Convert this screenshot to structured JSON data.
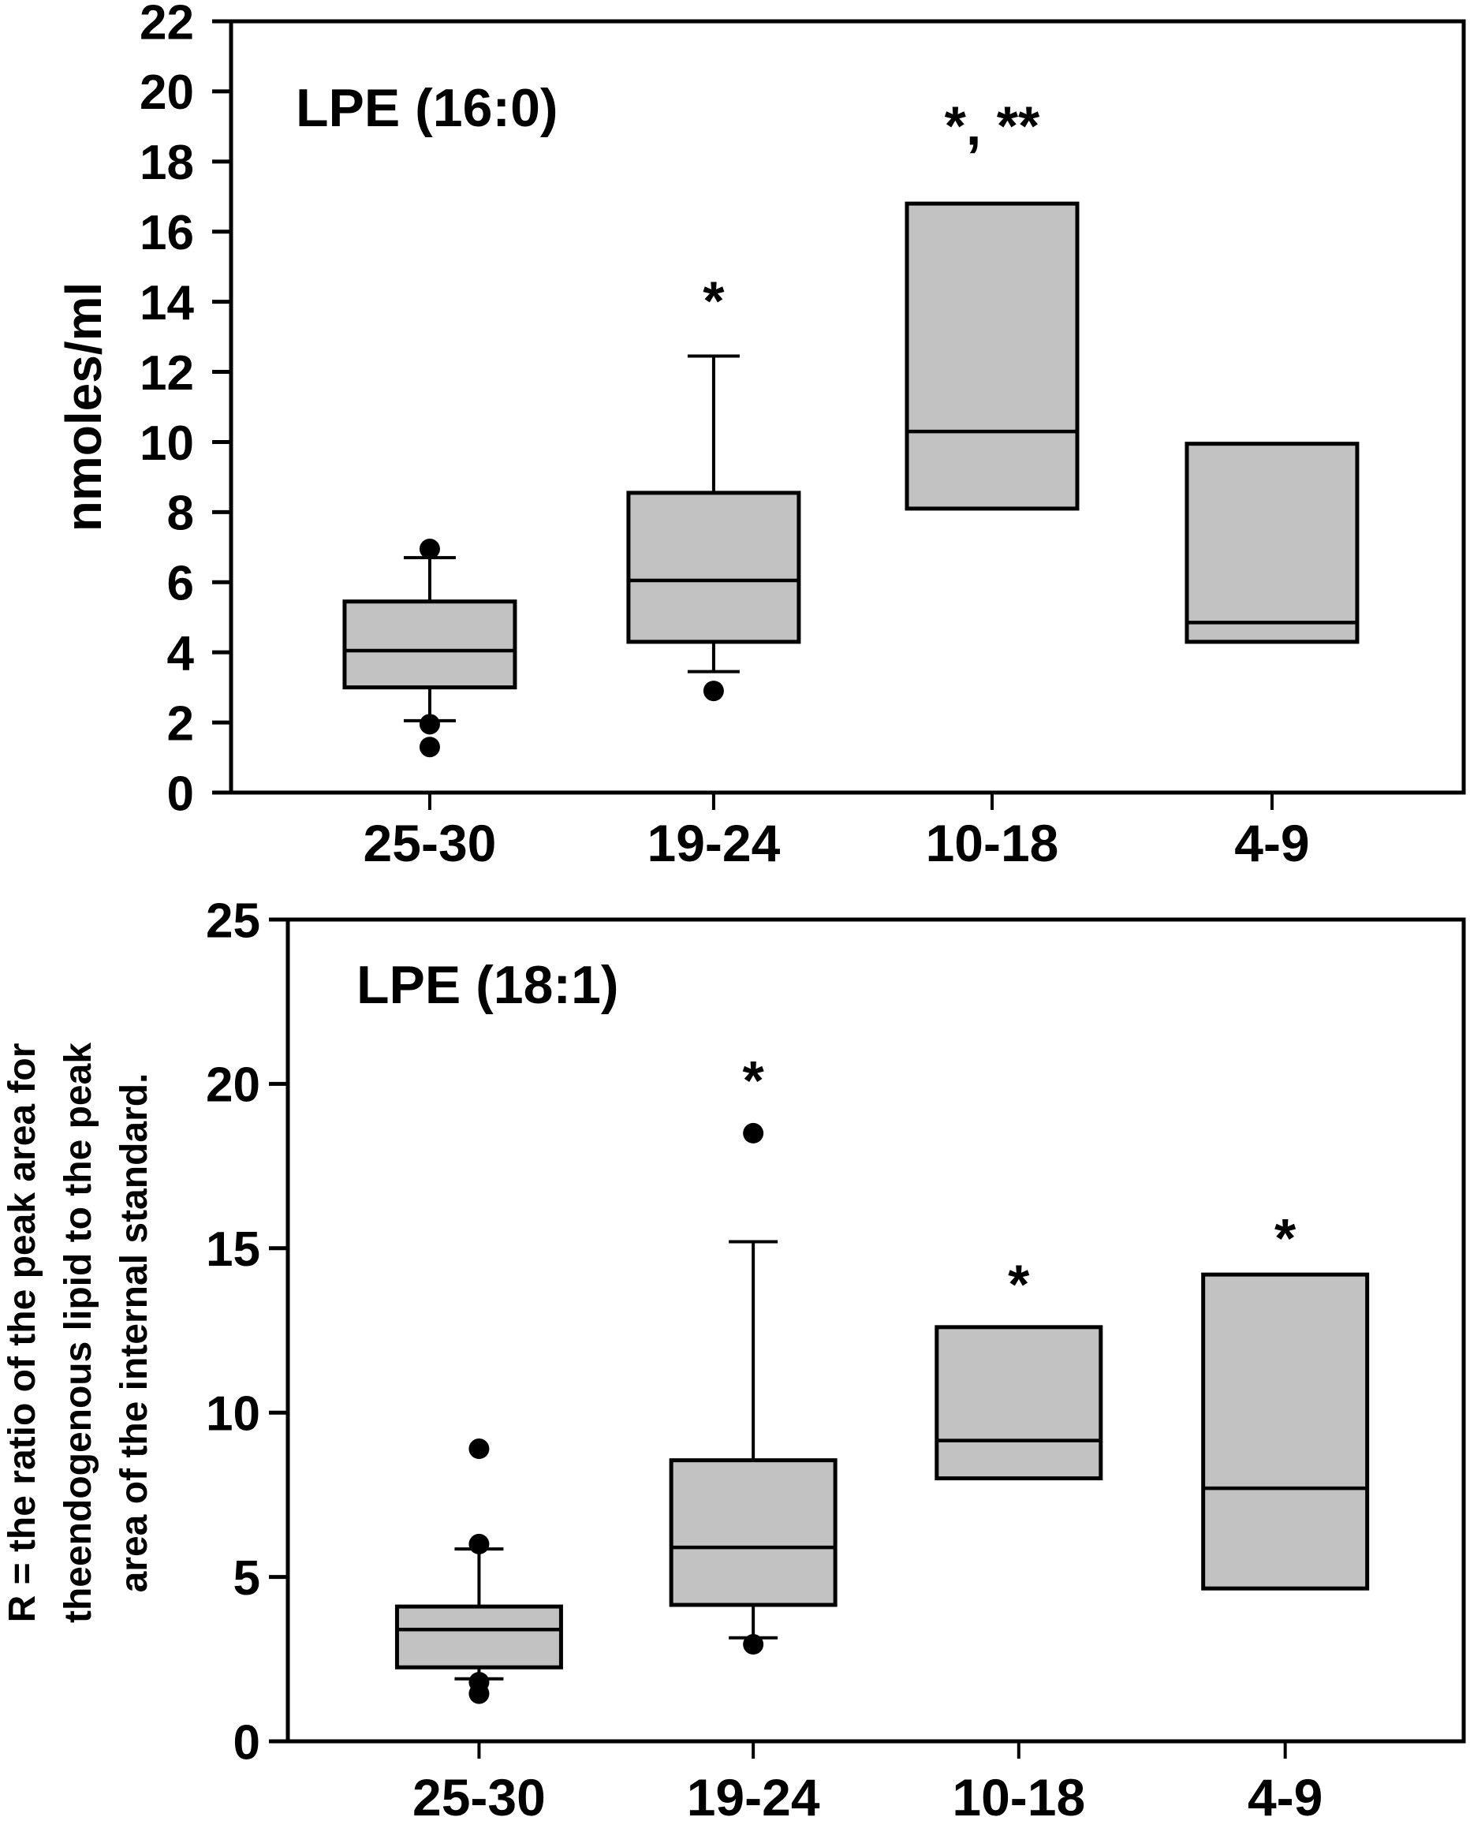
{
  "figure": {
    "background": "#FFFFFF",
    "description": "Two stacked box plots of LPE lipid levels by gestational-age group"
  },
  "style": {
    "box_fill": "#C2C2C2",
    "box_border": "#000000",
    "median_color": "#000000",
    "whisker_color": "#000000",
    "outlier_color": "#000000",
    "annotation_color": "#0D0DC8",
    "axis_color": "#000000"
  },
  "chart_data": [
    {
      "type": "box",
      "title": "LPE (16:0)",
      "ylabel": "nmoles/ml",
      "ylabel_lines": [
        "nmoles/ml"
      ],
      "xlabel": "",
      "ylim": [
        0,
        22
      ],
      "yticks": [
        0,
        2,
        4,
        6,
        8,
        10,
        12,
        14,
        16,
        18,
        20,
        22
      ],
      "grid": false,
      "legend": false,
      "categories": [
        "25-30",
        "19-24",
        "10-18",
        "4-9"
      ],
      "boxes": [
        {
          "category": "25-30",
          "q1": 3.0,
          "median": 4.05,
          "q3": 5.45,
          "whisker_low": 2.05,
          "whisker_high": 6.7,
          "outliers": [
            6.95,
            1.95,
            1.3
          ],
          "annotation": "",
          "annotation_y": null
        },
        {
          "category": "19-24",
          "q1": 4.3,
          "median": 6.05,
          "q3": 8.55,
          "whisker_low": 3.45,
          "whisker_high": 12.45,
          "outliers": [
            2.9
          ],
          "annotation": "*",
          "annotation_y": 14.3
        },
        {
          "category": "10-18",
          "q1": 8.1,
          "median": 10.3,
          "q3": 16.8,
          "whisker_low": null,
          "whisker_high": null,
          "outliers": [],
          "annotation": "*, **",
          "annotation_y": 19.3
        },
        {
          "category": "4-9",
          "q1": 4.3,
          "median": 4.85,
          "q3": 9.95,
          "whisker_low": null,
          "whisker_high": null,
          "outliers": [],
          "annotation": "",
          "annotation_y": null
        }
      ]
    },
    {
      "type": "box",
      "title": "LPE (18:1)",
      "ylabel": "R = the ratio of the peak area for theendogenous lipid to the peak area of the internal standard.",
      "ylabel_lines": [
        "R = the ratio of the peak area for",
        "theendogenous lipid to the peak",
        "area of the internal standard."
      ],
      "xlabel": "",
      "ylim": [
        0,
        25
      ],
      "yticks": [
        0,
        5,
        10,
        15,
        20,
        25
      ],
      "grid": false,
      "legend": false,
      "categories": [
        "25-30",
        "19-24",
        "10-18",
        "4-9"
      ],
      "boxes": [
        {
          "category": "25-30",
          "q1": 2.25,
          "median": 3.4,
          "q3": 4.1,
          "whisker_low": 1.9,
          "whisker_high": 5.85,
          "outliers": [
            8.9,
            6.0,
            1.8,
            1.45
          ],
          "annotation": "",
          "annotation_y": null
        },
        {
          "category": "19-24",
          "q1": 4.15,
          "median": 5.9,
          "q3": 8.55,
          "whisker_low": 3.15,
          "whisker_high": 15.2,
          "outliers": [
            18.5,
            2.95
          ],
          "annotation": "*",
          "annotation_y": 20.4
        },
        {
          "category": "10-18",
          "q1": 8.0,
          "median": 9.15,
          "q3": 12.6,
          "whisker_low": null,
          "whisker_high": null,
          "outliers": [],
          "annotation": "*",
          "annotation_y": 14.2
        },
        {
          "category": "4-9",
          "q1": 4.65,
          "median": 7.7,
          "q3": 14.2,
          "whisker_low": null,
          "whisker_high": null,
          "outliers": [],
          "annotation": "*",
          "annotation_y": 15.6
        }
      ]
    }
  ]
}
